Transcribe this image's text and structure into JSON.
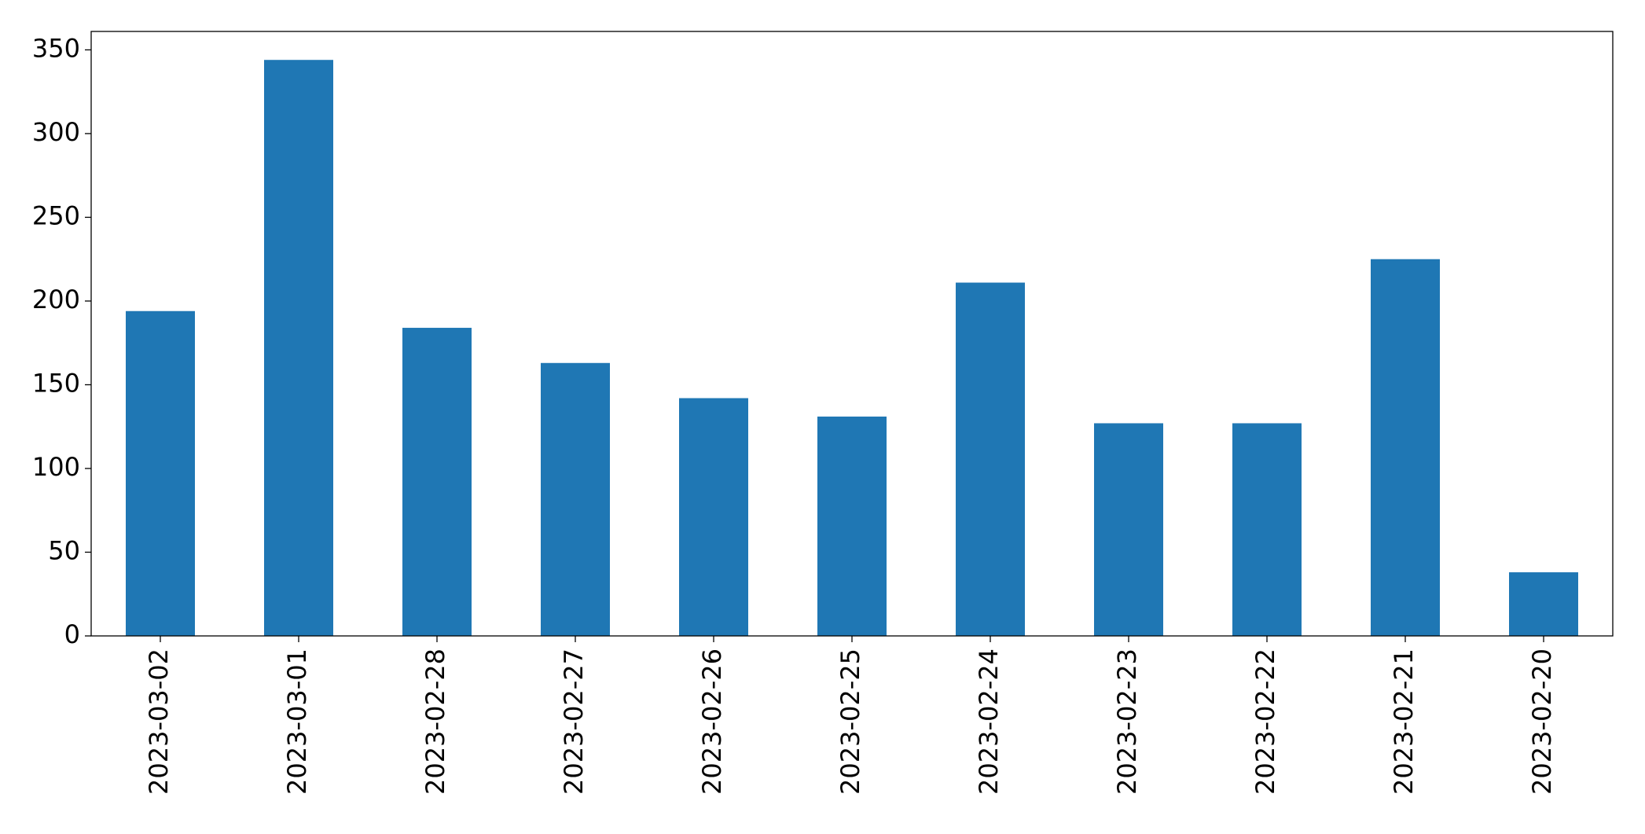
{
  "chart_data": {
    "type": "bar",
    "categories": [
      "2023-03-02",
      "2023-03-01",
      "2023-02-28",
      "2023-02-27",
      "2023-02-26",
      "2023-02-25",
      "2023-02-24",
      "2023-02-23",
      "2023-02-22",
      "2023-02-21",
      "2023-02-20"
    ],
    "values": [
      194,
      344,
      184,
      163,
      142,
      131,
      211,
      127,
      127,
      225,
      38
    ],
    "color": "#1f77b4",
    "ylim": [
      0,
      361
    ],
    "yticks": [
      0,
      50,
      100,
      150,
      200,
      250,
      300,
      350
    ],
    "grid": false
  }
}
